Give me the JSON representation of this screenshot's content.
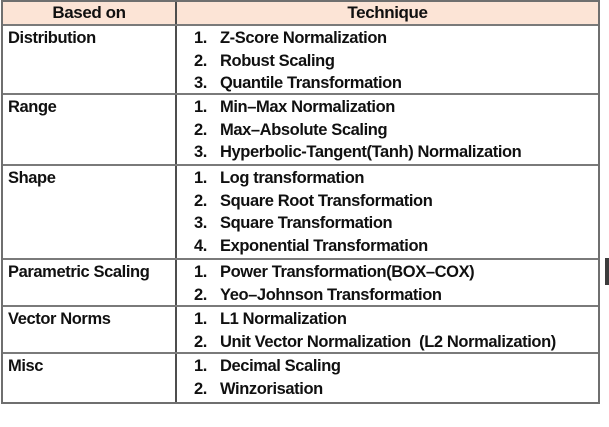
{
  "table": {
    "headers": {
      "based_on": "Based on",
      "technique": "Technique"
    },
    "rows": [
      {
        "based_on": "Distribution",
        "techniques": [
          {
            "num": "1.",
            "label": "Z-Score Normalization"
          },
          {
            "num": "2.",
            "label": "Robust Scaling"
          },
          {
            "num": "3.",
            "label": "Quantile Transformation"
          }
        ]
      },
      {
        "based_on": "Range",
        "techniques": [
          {
            "num": "1.",
            "label": "Min–Max Normalization"
          },
          {
            "num": "2.",
            "label": "Max–Absolute Scaling"
          },
          {
            "num": "3.",
            "label": "Hyperbolic-Tangent(Tanh) Normalization"
          }
        ]
      },
      {
        "based_on": "Shape",
        "techniques": [
          {
            "num": "1.",
            "label": "Log transformation"
          },
          {
            "num": "2.",
            "label": "Square Root Transformation"
          },
          {
            "num": "3.",
            "label": "Square Transformation"
          },
          {
            "num": "4.",
            "label": "Exponential Transformation"
          }
        ]
      },
      {
        "based_on": "Parametric Scaling",
        "techniques": [
          {
            "num": "1.",
            "label": "Power Transformation(BOX–COX)"
          },
          {
            "num": "2.",
            "label": "Yeo–Johnson Transformation"
          }
        ]
      },
      {
        "based_on": "Vector Norms",
        "techniques": [
          {
            "num": "1.",
            "label": "L1 Normalization"
          },
          {
            "num": "2.",
            "label": "Unit Vector Normalization  (L2 Normalization)"
          }
        ]
      },
      {
        "based_on": "Misc",
        "techniques": [
          {
            "num": "1.",
            "label": "Decimal Scaling"
          },
          {
            "num": "2.",
            "label": "Winzorisation"
          }
        ]
      }
    ]
  },
  "colors": {
    "header_bg": "#fce4d6",
    "outer_border": "#6f6f6f",
    "row_border": "#7a7a7a",
    "column_divider": "#4d4d4d",
    "text": "#101010",
    "page_bg": "#ffffff"
  }
}
